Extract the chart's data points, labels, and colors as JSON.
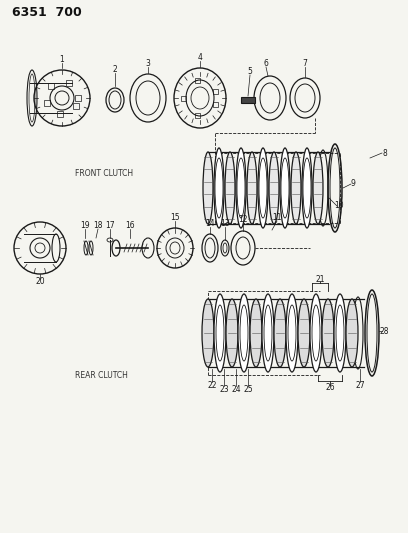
{
  "title": "6351  700",
  "bg_color": "#f5f5f0",
  "line_color": "#1a1a1a",
  "label_color": "#1a1a1a",
  "front_clutch_label": "FRONT CLUTCH",
  "rear_clutch_label": "REAR CLUTCH"
}
